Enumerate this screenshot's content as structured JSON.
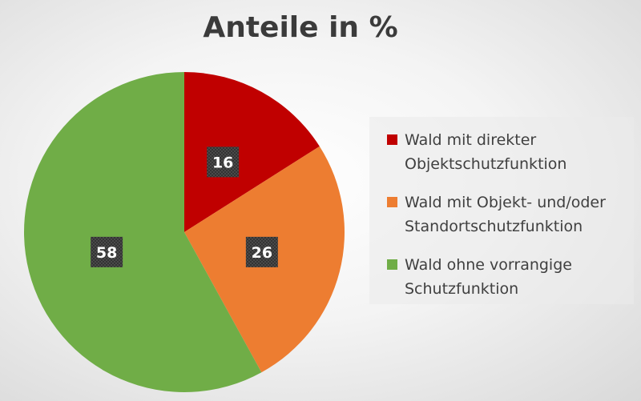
{
  "chart_data": {
    "type": "pie",
    "title": "Anteile in %",
    "categories": [
      "Wald mit direkter Objektschutzfunktion",
      "Wald mit Objekt- und/oder Standortschutzfunktion",
      "Wald ohne vorrangige Schutzfunktion"
    ],
    "legend_lines": [
      [
        "Wald mit direkter",
        "Objektschutzfunktion"
      ],
      [
        "Wald mit Objekt- und/oder",
        "Standortschutzfunktion"
      ],
      [
        "Wald ohne vorrangige",
        "Schutzfunktion"
      ]
    ],
    "values": [
      16,
      26,
      58
    ],
    "colors": [
      "#c00000",
      "#ed7d31",
      "#70ad47"
    ],
    "legend_position": "right"
  }
}
